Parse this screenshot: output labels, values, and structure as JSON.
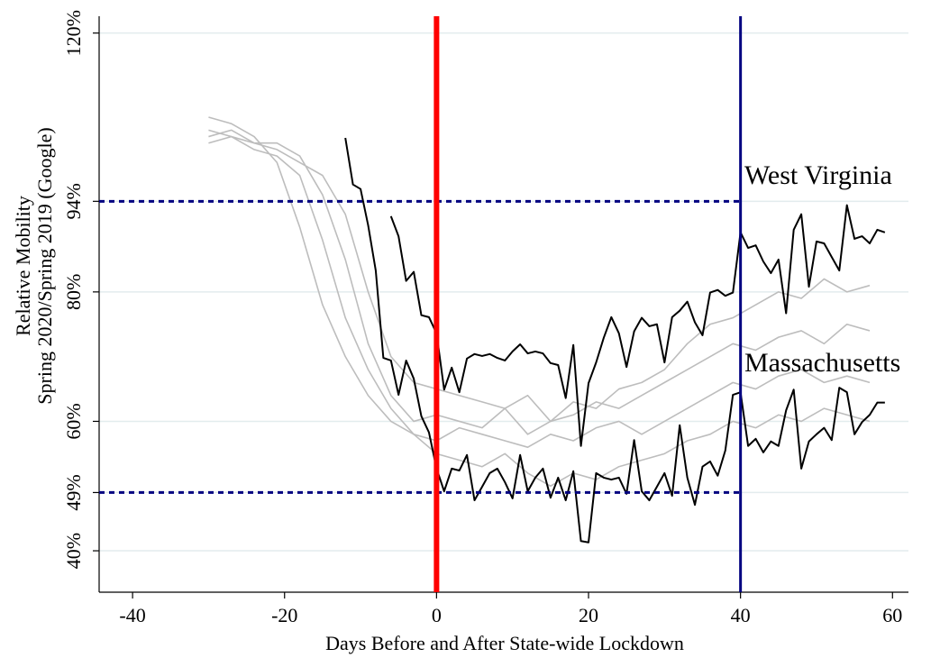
{
  "chart_data": {
    "type": "line",
    "xlabel": "Days Before and After State-wide Lockdown",
    "ylabel": [
      "Relative Mobility",
      "Spring 2020/Spring 2019 (Google)"
    ],
    "xlim": [
      -44.4,
      62.1
    ],
    "xticks": [
      -40,
      -20,
      0,
      20,
      40,
      60
    ],
    "ylim": [
      33.6,
      122.6
    ],
    "yticks": [
      {
        "value": 40,
        "label": "40%"
      },
      {
        "value": 49,
        "label": "49%"
      },
      {
        "value": 60,
        "label": "60%"
      },
      {
        "value": 80,
        "label": "80%"
      },
      {
        "value": 94,
        "label": "94%"
      },
      {
        "value": 120,
        "label": "120%"
      }
    ],
    "grid": true,
    "vlines": [
      {
        "x": 0,
        "color": "#ff0000"
      },
      {
        "x": 40,
        "color": "#000080"
      }
    ],
    "hlines": [
      {
        "y": 94,
        "x_end": 40,
        "color": "#000080"
      },
      {
        "y": 49,
        "x_end": 40,
        "color": "#000080"
      }
    ],
    "series": [
      {
        "color": "#bdbdbd",
        "x": [
          -30,
          -27,
          -24,
          -21,
          -18,
          -15,
          -12,
          -9,
          -6,
          -3,
          0,
          3,
          6,
          9,
          12,
          15,
          18,
          21,
          24,
          27,
          30,
          33,
          36,
          39,
          42,
          45,
          48,
          51,
          54,
          57
        ],
        "values": [
          107,
          106,
          104,
          100,
          90,
          78,
          70,
          64,
          60,
          58,
          57,
          59,
          58,
          57,
          56,
          58,
          57,
          59,
          60,
          58,
          60,
          62,
          64,
          66,
          65,
          67,
          68,
          66,
          67,
          66
        ]
      },
      {
        "color": "#bdbdbd",
        "x": [
          -30,
          -27,
          -24,
          -21,
          -18,
          -15,
          -12,
          -9,
          -6,
          -3,
          0,
          3,
          6,
          9,
          12,
          15,
          18,
          21,
          24,
          27,
          30,
          33,
          36,
          39,
          42,
          45,
          48,
          51,
          54,
          57
        ],
        "values": [
          104,
          105,
          103,
          103,
          101,
          95,
          85,
          72,
          64,
          60,
          61,
          60,
          59,
          62,
          58,
          60,
          61,
          63,
          62,
          64,
          66,
          68,
          70,
          72,
          71,
          73,
          74,
          72,
          75,
          74
        ]
      },
      {
        "color": "#bdbdbd",
        "x": [
          -30,
          -27,
          -24,
          -21,
          -18,
          -15,
          -12,
          -9,
          -6,
          -3,
          0,
          3,
          6,
          9,
          12,
          15,
          18,
          21,
          24,
          27,
          30,
          33,
          36,
          39,
          42,
          45,
          48,
          51,
          54,
          57
        ],
        "values": [
          103,
          104,
          103,
          102,
          100,
          98,
          92,
          80,
          70,
          66,
          65,
          64,
          63,
          62,
          64,
          60,
          63,
          62,
          65,
          66,
          68,
          72,
          75,
          76,
          78,
          80,
          79,
          82,
          80,
          81
        ]
      },
      {
        "color": "#bdbdbd",
        "x": [
          -30,
          -27,
          -24,
          -21,
          -18,
          -15,
          -12,
          -9,
          -6,
          -3,
          0,
          3,
          6,
          9,
          12,
          15,
          18,
          21,
          24,
          27,
          30,
          33,
          36,
          39,
          42,
          45,
          48,
          51,
          54,
          57
        ],
        "values": [
          105,
          104,
          102,
          101,
          98,
          88,
          76,
          68,
          62,
          58,
          55,
          54,
          53,
          55,
          52,
          50,
          52,
          51,
          53,
          54,
          55,
          57,
          58,
          60,
          59,
          61,
          60,
          62,
          61,
          60
        ]
      },
      {
        "name": "West Virginia",
        "color": "#000000",
        "x": [
          -6,
          -5,
          -4,
          -3,
          -2,
          -1,
          0,
          1,
          2,
          3,
          4,
          5,
          6,
          7,
          8,
          9,
          10,
          11,
          12,
          13,
          14,
          15,
          16,
          17,
          18,
          19,
          20,
          21,
          22,
          23,
          24,
          25,
          26,
          27,
          28,
          29,
          30,
          31,
          32,
          33,
          34,
          35,
          36,
          37,
          38,
          39,
          40,
          41,
          42,
          43,
          44,
          45,
          46,
          47,
          48,
          49,
          50,
          51,
          52,
          53,
          54,
          55,
          56,
          57,
          58,
          59
        ],
        "values": [
          91.7,
          88.6,
          81.7,
          83.1,
          76.4,
          76.1,
          73.6,
          64.9,
          68.3,
          64.5,
          69.7,
          70.4,
          70.1,
          70.4,
          69.8,
          69.4,
          70.8,
          71.9,
          70.5,
          70.8,
          70.5,
          69.0,
          68.7,
          63.6,
          71.8,
          56.2,
          65.9,
          69.1,
          72.9,
          76.1,
          73.6,
          68.4,
          73.9,
          76.0,
          74.7,
          75.0,
          69.1,
          76.1,
          77.1,
          78.5,
          75.3,
          73.3,
          79.9,
          80.3,
          79.4,
          79.9,
          89.2,
          86.8,
          87.2,
          84.7,
          82.9,
          85.0,
          76.7,
          89.6,
          92.0,
          80.8,
          87.8,
          87.5,
          85.4,
          83.3,
          93.4,
          88.2,
          88.6,
          87.5,
          89.6,
          89.2
        ]
      },
      {
        "name": "Massachusetts",
        "color": "#000000",
        "x": [
          -12,
          -11,
          -10,
          -9,
          -8,
          -7,
          -6,
          -5,
          -4,
          -3,
          -2,
          -1,
          0,
          1,
          2,
          3,
          4,
          5,
          6,
          7,
          8,
          9,
          10,
          11,
          12,
          13,
          14,
          15,
          16,
          17,
          18,
          19,
          20,
          21,
          22,
          23,
          24,
          25,
          26,
          27,
          28,
          29,
          30,
          31,
          32,
          33,
          34,
          35,
          36,
          37,
          38,
          39,
          40,
          41,
          42,
          43,
          44,
          45,
          46,
          47,
          48,
          49,
          50,
          51,
          52,
          53,
          54,
          55,
          56,
          57,
          58,
          59
        ],
        "values": [
          103.8,
          96.6,
          95.9,
          90.3,
          83.3,
          69.8,
          69.4,
          64.1,
          69.4,
          66.6,
          60.8,
          58.3,
          52.7,
          49.2,
          52.7,
          52.4,
          54.8,
          47.8,
          49.9,
          52.0,
          52.7,
          50.6,
          48.1,
          54.8,
          49.2,
          51.3,
          52.7,
          48.2,
          51.3,
          47.8,
          52.3,
          41.5,
          41.3,
          52.0,
          51.3,
          51.0,
          51.3,
          48.8,
          57.1,
          49.2,
          47.8,
          49.9,
          52.0,
          48.5,
          59.4,
          51.3,
          47.1,
          53.0,
          53.8,
          51.6,
          55.5,
          64.1,
          64.5,
          56.2,
          57.3,
          55.2,
          56.9,
          56.2,
          61.7,
          64.9,
          52.7,
          56.9,
          58.0,
          59.0,
          57.1,
          65.2,
          64.5,
          58.0,
          59.9,
          61.0,
          62.9,
          62.9
        ]
      }
    ]
  }
}
